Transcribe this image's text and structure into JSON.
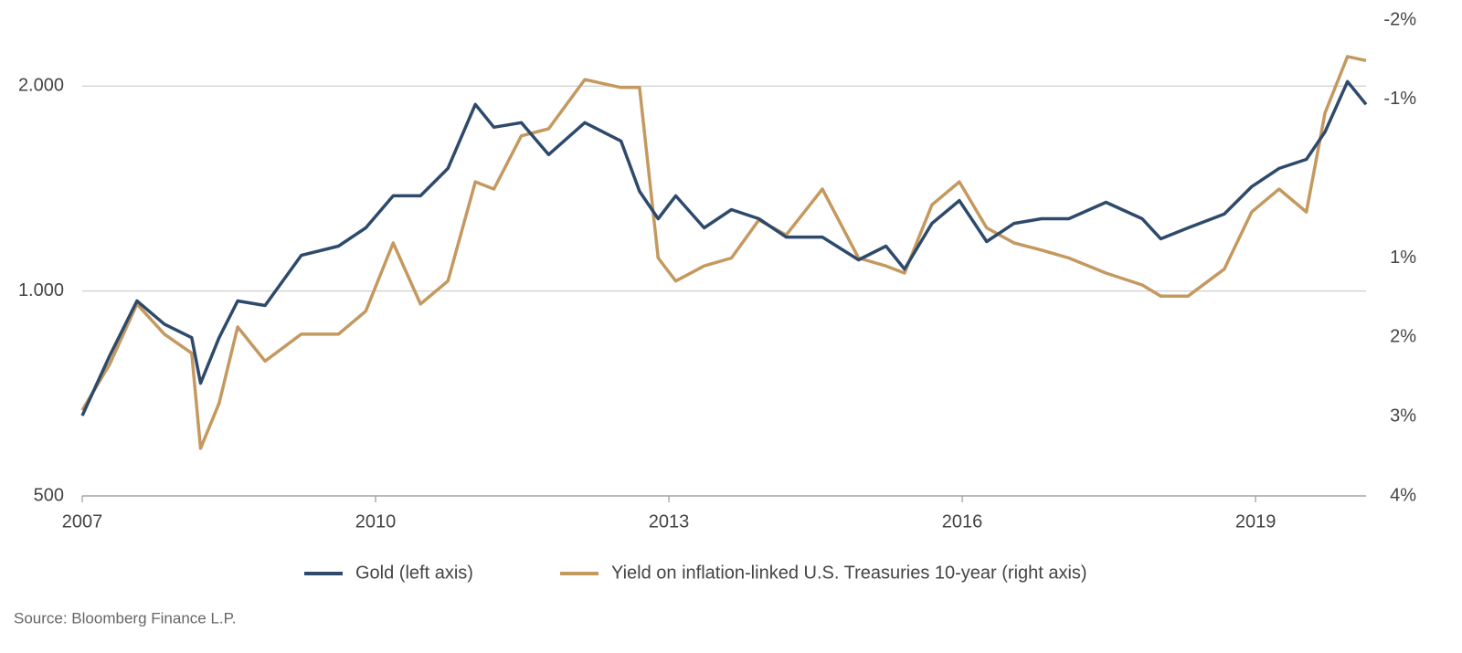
{
  "chart_data": {
    "type": "line",
    "x": [
      2007.0,
      2007.28,
      2007.56,
      2007.84,
      2008.12,
      2008.21,
      2008.4,
      2008.59,
      2008.87,
      2009.24,
      2009.62,
      2009.9,
      2010.18,
      2010.46,
      2010.74,
      2011.02,
      2011.21,
      2011.49,
      2011.77,
      2012.14,
      2012.51,
      2012.7,
      2012.89,
      2013.07,
      2013.36,
      2013.64,
      2013.92,
      2014.2,
      2014.57,
      2014.94,
      2015.22,
      2015.41,
      2015.69,
      2015.97,
      2016.25,
      2016.53,
      2016.81,
      2017.09,
      2017.47,
      2017.84,
      2018.03,
      2018.31,
      2018.68,
      2018.96,
      2019.24,
      2019.52,
      2019.71,
      2019.94,
      2020.13
    ],
    "series": [
      {
        "name": "Gold (left axis)",
        "color": "#2e4a6b",
        "axis": "y",
        "values": [
          656,
          803,
          967,
          894,
          854,
          732,
          854,
          967,
          952,
          1128,
          1164,
          1238,
          1380,
          1380,
          1514,
          1880,
          1740,
          1767,
          1586,
          1767,
          1661,
          1401,
          1277,
          1380,
          1238,
          1317,
          1277,
          1200,
          1200,
          1111,
          1164,
          1077,
          1257,
          1358,
          1182,
          1257,
          1277,
          1277,
          1350,
          1277,
          1193,
          1238,
          1297,
          1423,
          1514,
          1561,
          1713,
          2031,
          1880
        ]
      },
      {
        "name": "Yield on inflation-linked U.S. Treasuries 10-year  (right axis)",
        "color": "#c4995f",
        "axis": "y2",
        "values": [
          2.92,
          2.34,
          1.58,
          1.96,
          2.2,
          3.4,
          2.83,
          1.87,
          2.3,
          1.96,
          1.96,
          1.67,
          0.81,
          1.58,
          1.29,
          0.04,
          0.13,
          -0.54,
          -0.63,
          -1.25,
          -1.15,
          -1.15,
          1.0,
          1.29,
          1.1,
          1.0,
          0.52,
          0.71,
          0.13,
          1.0,
          1.1,
          1.19,
          0.33,
          0.04,
          0.62,
          0.81,
          0.9,
          1.0,
          1.19,
          1.34,
          1.48,
          1.48,
          1.14,
          0.42,
          0.13,
          0.42,
          -0.83,
          -1.54,
          -1.49
        ]
      }
    ],
    "xlim": [
      2007,
      2020.13
    ],
    "xticks": [
      2007,
      2010,
      2013,
      2016,
      2019
    ],
    "ylim": [
      500,
      2500
    ],
    "ylog": true,
    "yticks": [
      500,
      {
        "value": 1000,
        "label": "1.000"
      },
      {
        "value": 2000,
        "label": "2.000"
      }
    ],
    "y2lim": [
      4,
      -2
    ],
    "y2ticks": [
      {
        "value": -2,
        "label": "-2%"
      },
      {
        "value": -1,
        "label": "-1%"
      },
      {
        "value": 1,
        "label": "1%"
      },
      {
        "value": 2,
        "label": "2%"
      },
      {
        "value": 3,
        "label": "3%"
      },
      {
        "value": 4,
        "label": "4%"
      }
    ],
    "grid": true,
    "legend": "bottom",
    "source": "Source: Bloomberg Finance L.P."
  }
}
